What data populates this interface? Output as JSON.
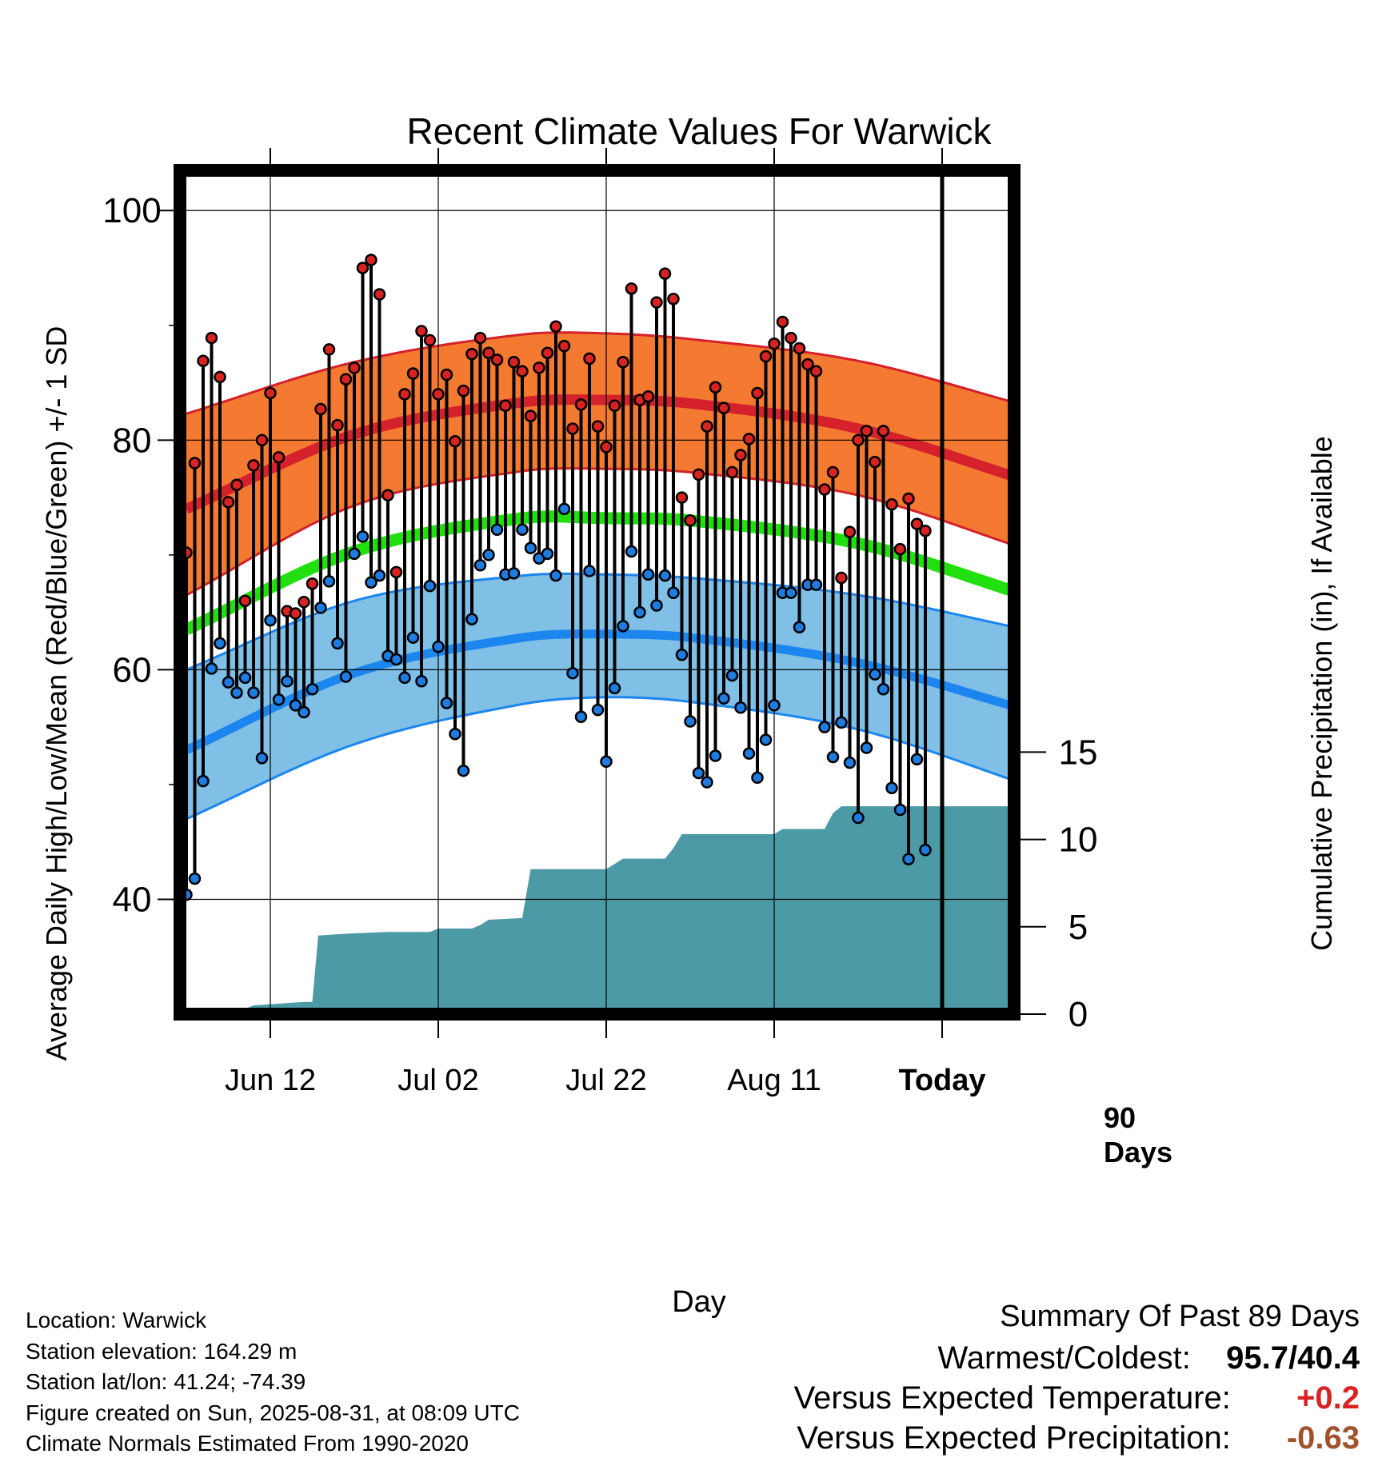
{
  "chart_data": {
    "type": "line",
    "title": "Recent Climate Values For Warwick",
    "xlabel": "Day",
    "ylabel": "Average Daily High/Low/Mean (Red/Blue/Green) +/- 1 SD",
    "y2label": "Cumulative Precipitation (in), If Available",
    "x_tick_labels": [
      "Jun 12",
      "Jul 02",
      "Jul 22",
      "Aug 11",
      "Today"
    ],
    "x_tick_days": [
      11,
      31,
      51,
      71,
      91
    ],
    "ylim": [
      30,
      103.5
    ],
    "yticks": [
      40,
      60,
      80,
      100
    ],
    "y2lim": [
      0,
      48.3
    ],
    "y2ticks": [
      0,
      5,
      10,
      15
    ],
    "marker_label_line1": "90",
    "marker_label_line2": "Days",
    "today_day": 91,
    "colors": {
      "high_band": "#f37a30",
      "high_mean": "#d4212b",
      "low_band": "#80bfe6",
      "low_mean": "#1b86ee",
      "mean": "#22e00f",
      "precip": "#4b9aa5",
      "high_marker": "#d92222",
      "low_marker": "#1e7ce0"
    },
    "normals": {
      "days": [
        1,
        21,
        41,
        51,
        61,
        81,
        101
      ],
      "high_mean": [
        74,
        80.5,
        83.3,
        83.5,
        83.2,
        81,
        76.5
      ],
      "high_sd_upper": [
        82.3,
        86.8,
        89.2,
        89.3,
        88.8,
        86.9,
        83
      ],
      "high_sd_lower": [
        66.5,
        74.3,
        77.3,
        77.5,
        77.2,
        75.2,
        70.5
      ],
      "mean": [
        63.5,
        70.3,
        73.2,
        73.2,
        73,
        71,
        66.5
      ],
      "low_mean": [
        53,
        59.7,
        62.8,
        63.1,
        62.8,
        60.6,
        56.5
      ],
      "low_sd_upper": [
        60,
        66,
        68.2,
        68.3,
        68,
        66.5,
        63.5
      ],
      "low_sd_lower": [
        47,
        53.5,
        57,
        57.6,
        57.2,
        54.8,
        50
      ]
    },
    "highs": [
      70.2,
      78,
      86.9,
      88.9,
      85.5,
      74.6,
      76.1,
      66,
      77.8,
      80,
      84.1,
      78.5,
      65.1,
      64.9,
      65.9,
      67.5,
      82.7,
      87.9,
      81.3,
      85.3,
      86.3,
      95,
      95.7,
      92.7,
      75.2,
      68.5,
      84,
      85.8,
      89.5,
      88.7,
      84,
      85.7,
      79.9,
      84.3,
      87.5,
      88.9,
      87.6,
      87,
      83,
      86.8,
      86,
      82.1,
      86.3,
      87.6,
      89.9,
      88.2,
      81,
      83.1,
      87.1,
      81.2,
      79.4,
      83,
      86.8,
      93.2,
      83.5,
      83.8,
      92,
      94.5,
      92.3,
      75,
      73,
      77,
      81.2,
      84.6,
      82.8,
      77.2,
      78.7,
      80.1,
      84.1,
      87.3,
      88.4,
      90.3,
      88.9,
      88,
      86.6,
      86,
      75.7,
      77.2,
      68,
      72,
      80,
      80.8,
      78.1,
      80.8,
      74.4,
      70.5,
      74.9,
      72.7,
      72.1
    ],
    "lows": [
      40.4,
      41.8,
      50.3,
      60.1,
      62.3,
      58.9,
      58,
      59.3,
      58,
      52.3,
      64.3,
      57.4,
      59,
      56.9,
      56.3,
      58.3,
      65.4,
      67.7,
      62.3,
      59.4,
      70.1,
      71.6,
      67.6,
      68.2,
      61.2,
      60.9,
      59.3,
      62.8,
      59,
      67.3,
      62,
      57.1,
      54.4,
      51.2,
      64.4,
      69.1,
      70,
      72.2,
      68.3,
      68.4,
      72.2,
      70.6,
      69.7,
      70.1,
      68.2,
      74,
      59.7,
      55.9,
      68.6,
      56.5,
      52,
      58.4,
      63.8,
      70.3,
      65,
      68.3,
      65.6,
      68.2,
      66.7,
      61.3,
      55.5,
      51,
      50.2,
      52.5,
      57.5,
      59.5,
      56.7,
      52.7,
      50.6,
      53.9,
      56.9,
      66.7,
      66.7,
      63.7,
      67.4,
      67.4,
      55,
      52.4,
      55.4,
      51.9,
      47.1,
      53.2,
      59.6,
      58.3,
      49.7,
      47.8,
      43.5,
      52.2,
      44.3
    ],
    "precip": {
      "days": [
        1,
        5,
        7,
        8,
        9,
        15,
        16,
        16.7,
        20,
        25,
        30,
        31,
        35,
        36,
        37,
        41,
        42,
        43,
        44,
        51,
        52,
        53,
        58,
        59,
        60,
        71,
        72,
        77,
        78,
        79,
        101
      ],
      "values": [
        0,
        0,
        0.3,
        0.3,
        0.5,
        0.7,
        0.7,
        4.5,
        4.6,
        4.7,
        4.7,
        4.9,
        4.9,
        5.1,
        5.4,
        5.5,
        8.3,
        8.3,
        8.3,
        8.3,
        8.6,
        8.9,
        8.9,
        9.5,
        10.3,
        10.3,
        10.6,
        10.6,
        11.5,
        11.9,
        11.9
      ]
    }
  },
  "footer": {
    "location": "Location: Warwick",
    "elevation": "Station elevation: 164.29 m",
    "latlon": "Station lat/lon: 41.24; -74.39",
    "created": "Figure created on Sun, 2025-08-31, at 08:09 UTC",
    "normals": "Climate Normals Estimated From 1990-2020"
  },
  "summary": {
    "heading": "Summary Of Past 89 Days",
    "warmest_coldest_label": "Warmest/Coldest:",
    "warmest_coldest_value": "95.7/40.4",
    "temp_label": "Versus Expected Temperature:",
    "temp_value": "+0.2",
    "temp_color": "#d92222",
    "precip_label": "Versus Expected Precipitation:",
    "precip_value": "-0.63",
    "precip_color": "#a0522d"
  }
}
